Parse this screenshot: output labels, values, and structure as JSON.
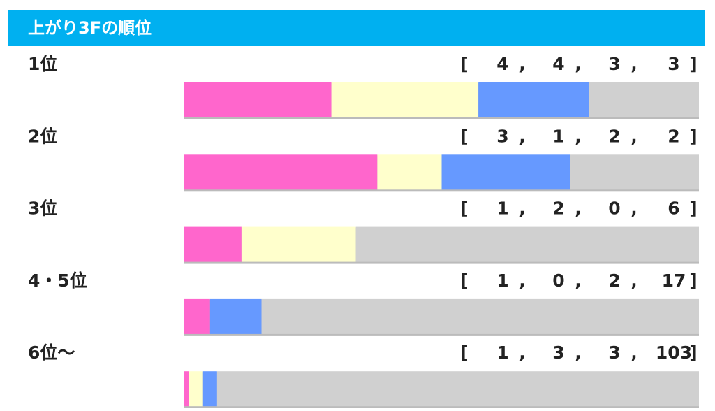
{
  "chart_data": {
    "type": "stacked_bar_100",
    "title": "上がり3Fの順位",
    "categories": [
      "1位",
      "2位",
      "3位",
      "4・5位",
      "6位〜"
    ],
    "brackets": [
      "[",
      "]"
    ],
    "separator": ",",
    "series": [
      {
        "color": "#ff66cc",
        "values": [
          4,
          3,
          1,
          1,
          1
        ]
      },
      {
        "color": "#ffffcc",
        "values": [
          4,
          1,
          2,
          0,
          3
        ]
      },
      {
        "color": "#6699ff",
        "values": [
          3,
          2,
          0,
          2,
          3
        ]
      },
      {
        "color": "#d0d0d0",
        "values": [
          3,
          2,
          6,
          17,
          103
        ]
      }
    ]
  }
}
